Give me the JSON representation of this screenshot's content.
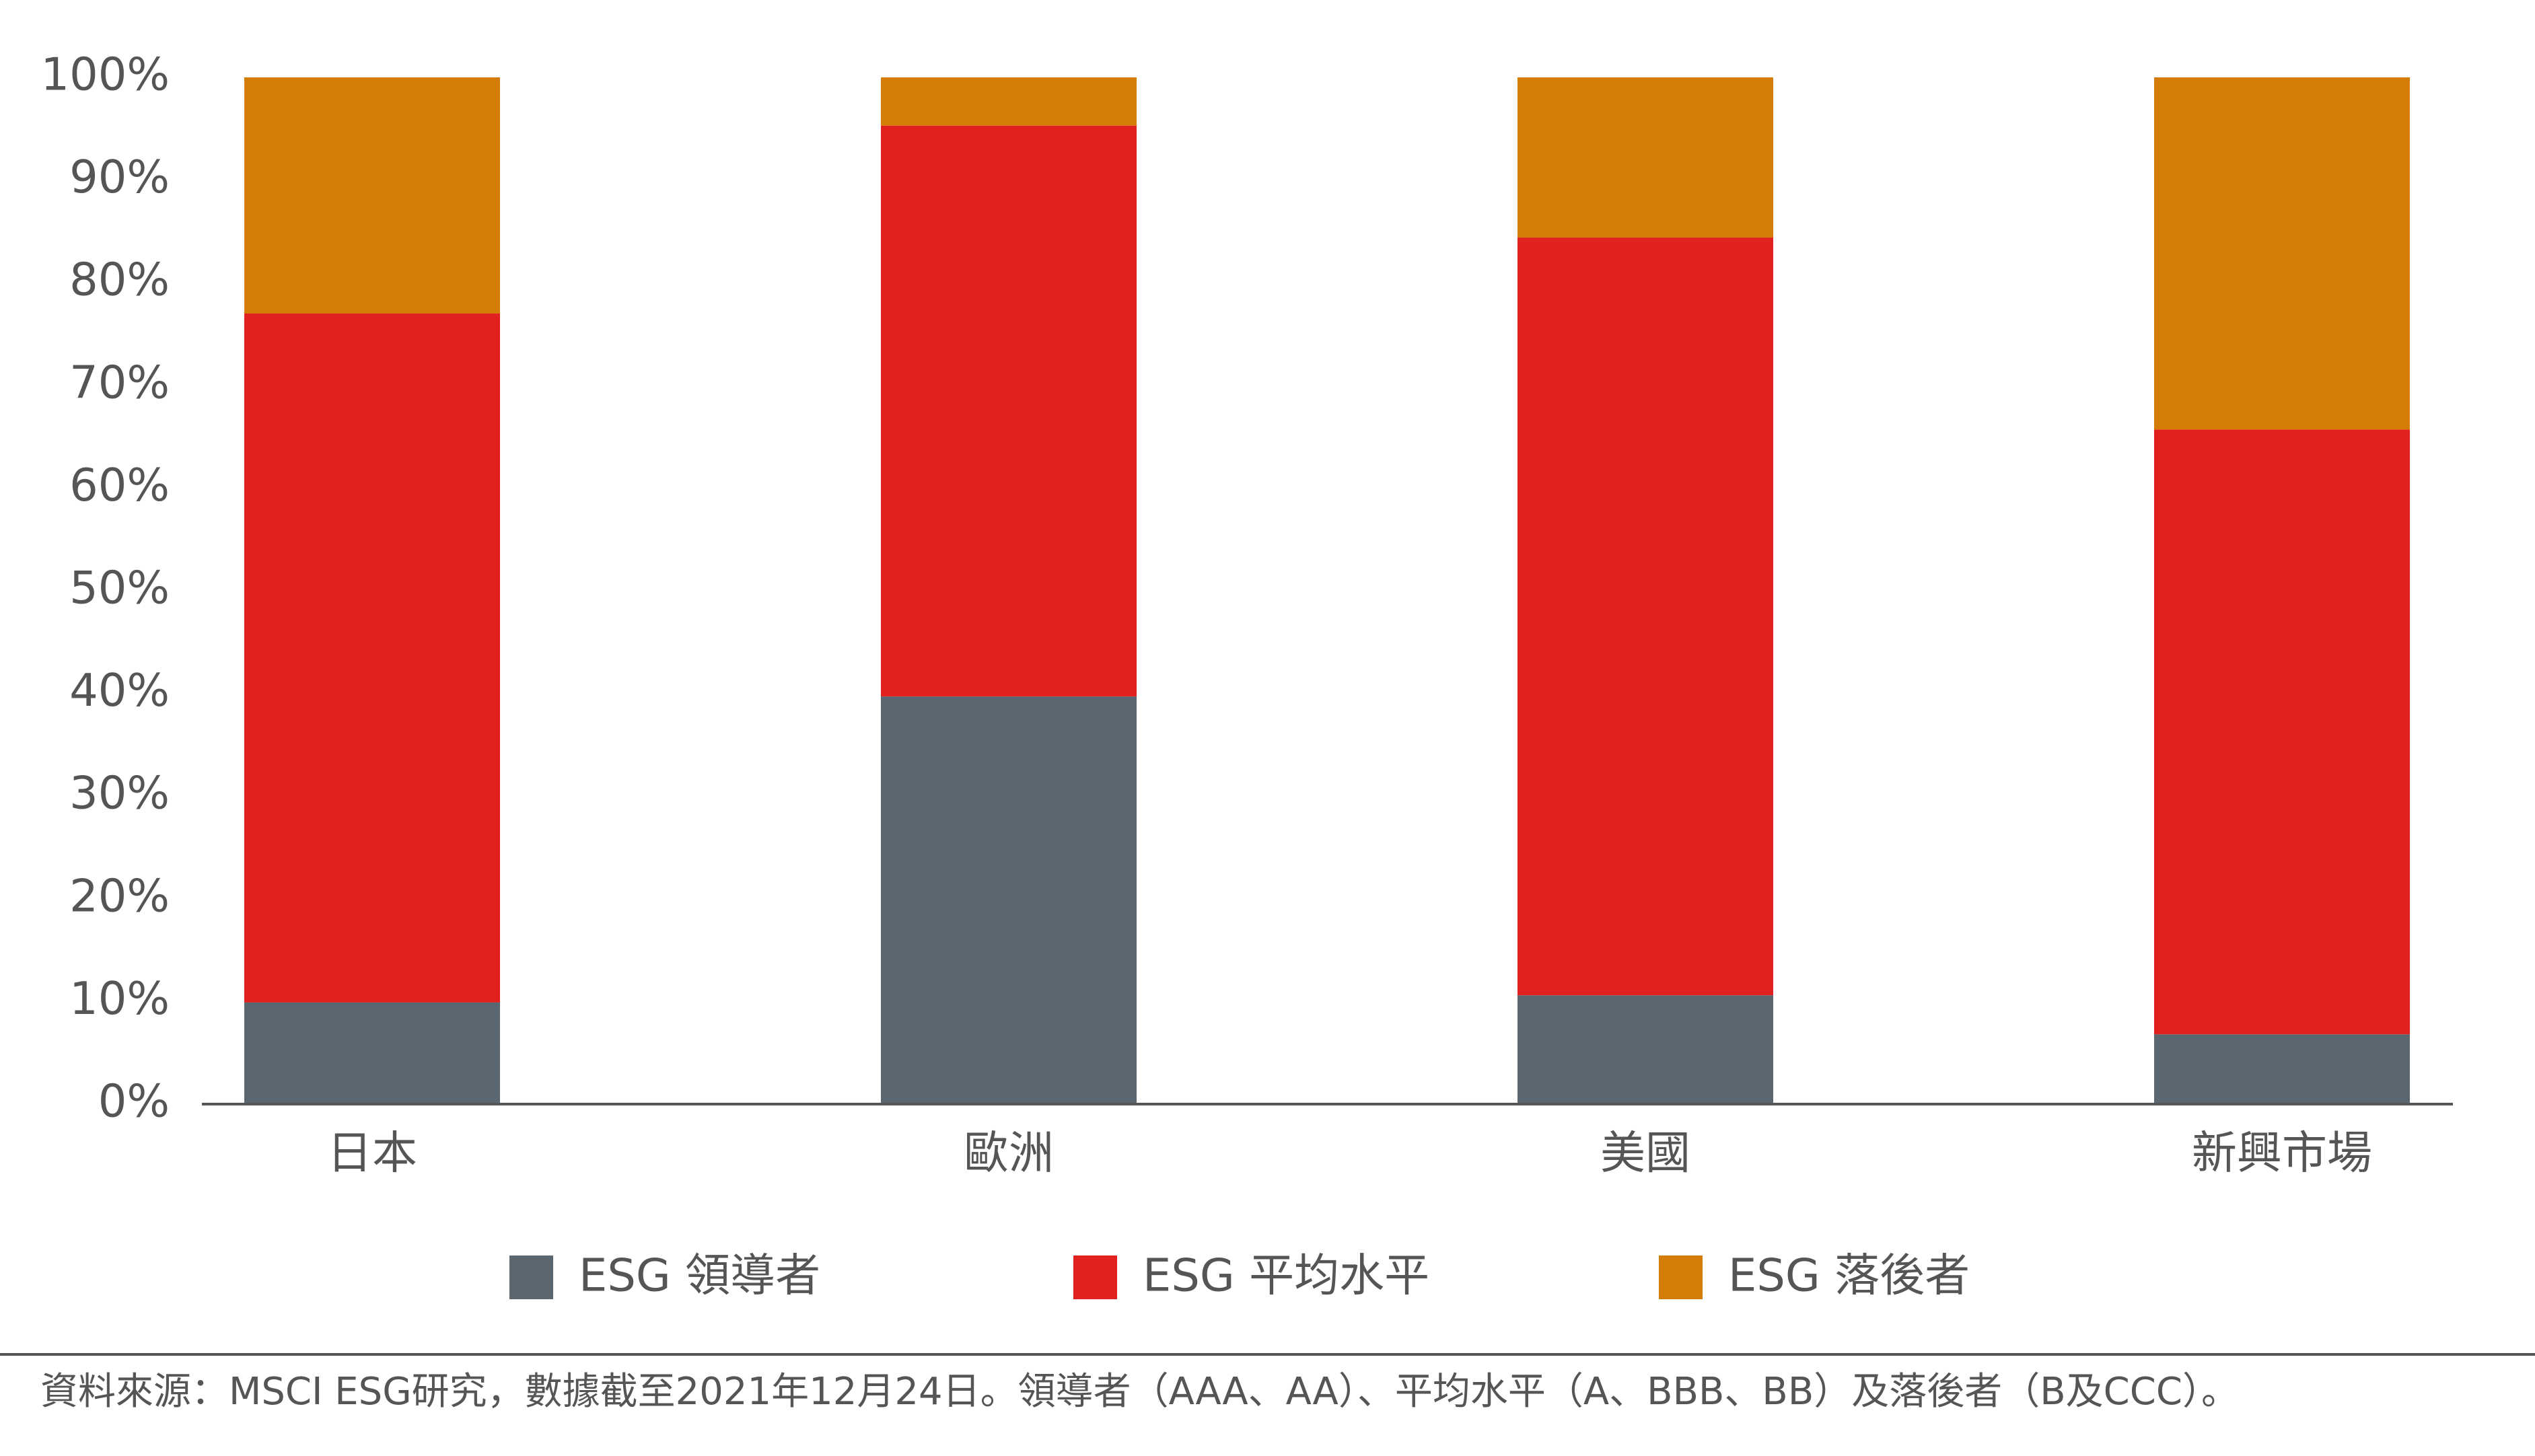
{
  "chart_data": {
    "type": "stacked_bar",
    "categories": [
      "日本",
      "歐洲",
      "美國",
      "新興市場"
    ],
    "series": [
      {
        "name": "ESG 領導者",
        "color": "#5b6770",
        "values": [
          9.9,
          39.7,
          10.6,
          6.8
        ]
      },
      {
        "name": "ESG 平均水平",
        "color": "#e0211f",
        "values": [
          67.1,
          55.6,
          73.8,
          58.9
        ]
      },
      {
        "name": "ESG 落後者",
        "color": "#d47d04",
        "values": [
          23.0,
          4.7,
          15.6,
          34.3
        ]
      }
    ],
    "ylim": [
      0,
      100
    ],
    "yticks": [
      {
        "value": 0,
        "label": "0%"
      },
      {
        "value": 10,
        "label": "10%"
      },
      {
        "value": 20,
        "label": "20%"
      },
      {
        "value": 30,
        "label": "30%"
      },
      {
        "value": 40,
        "label": "40%"
      },
      {
        "value": 50,
        "label": "50%"
      },
      {
        "value": 60,
        "label": "60%"
      },
      {
        "value": 70,
        "label": "70%"
      },
      {
        "value": 80,
        "label": "80%"
      },
      {
        "value": 90,
        "label": "90%"
      },
      {
        "value": 100,
        "label": "100%"
      }
    ],
    "grid": false,
    "legend": "bottom",
    "source": "資料來源：MSCI ESG研究，數據截至2021年12月24日。領導者（AAA、AA）、平均水平（A、BBB、BB）及落後者（B及CCC）。"
  }
}
